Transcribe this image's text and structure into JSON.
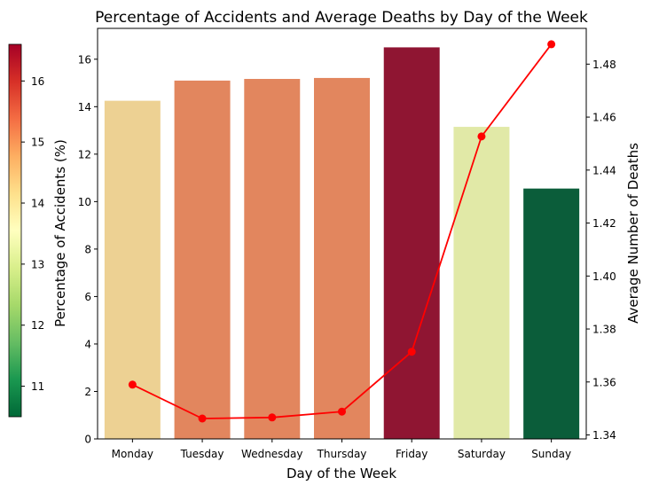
{
  "chart_data": {
    "type": "bar",
    "title": "Percentage of Accidents and Average Deaths by Day of the Week",
    "xlabel": "Day of the Week",
    "ylabel": "Percentage of Accidents (%)",
    "y2label": "Average Number of Deaths",
    "categories": [
      "Monday",
      "Tuesday",
      "Wednesday",
      "Thursday",
      "Friday",
      "Saturday",
      "Sunday"
    ],
    "series": [
      {
        "type": "bar",
        "axis": "left",
        "values": [
          14.25,
          15.1,
          15.17,
          15.21,
          16.5,
          13.15,
          10.55
        ],
        "colors": [
          "#edd193",
          "#e2865e",
          "#e2865e",
          "#e2865e",
          "#8f1532",
          "#e1e9a7",
          "#0b5d3a"
        ]
      },
      {
        "type": "line",
        "axis": "right",
        "color": "#ff0000",
        "values": [
          1.359,
          1.3462,
          1.3466,
          1.3488,
          1.3714,
          1.4527,
          1.4875
        ]
      }
    ],
    "ylim": [
      0,
      17.3
    ],
    "y2lim": [
      1.3385,
      1.4935
    ],
    "yticks": [
      "0",
      "2",
      "4",
      "6",
      "8",
      "10",
      "12",
      "14",
      "16"
    ],
    "y2ticks": [
      "1.34",
      "1.36",
      "1.38",
      "1.40",
      "1.42",
      "1.44",
      "1.46",
      "1.48"
    ],
    "colorbar": {
      "range": [
        10.5,
        16.6
      ],
      "ticks": [
        "11",
        "12",
        "13",
        "14",
        "15",
        "16"
      ],
      "colormap": "RdYlGn_r"
    },
    "grid": false,
    "legend": "none",
    "colors": {
      "line": "#ff0000",
      "y2label": "#ff0000",
      "axis": "#000000"
    }
  }
}
